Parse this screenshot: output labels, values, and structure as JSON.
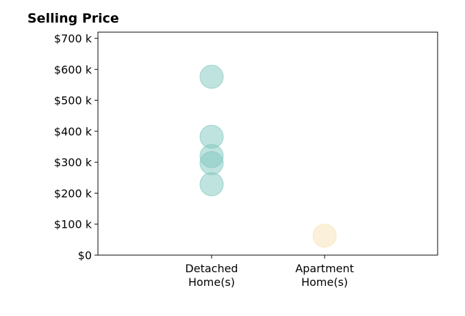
{
  "chart_data": {
    "type": "scatter",
    "title": "Selling Price",
    "xlabel": "",
    "ylabel": "",
    "categories": [
      "Detached\nHome(s)",
      "Apartment\nHome(s)"
    ],
    "ylim": [
      0,
      720000
    ],
    "yticks": [
      {
        "value": 0,
        "label": "$0"
      },
      {
        "value": 100000,
        "label": "$100 k"
      },
      {
        "value": 200000,
        "label": "$200 k"
      },
      {
        "value": 300000,
        "label": "$300 k"
      },
      {
        "value": 400000,
        "label": "$400 k"
      },
      {
        "value": 500000,
        "label": "$500 k"
      },
      {
        "value": 600000,
        "label": "$600 k"
      },
      {
        "value": 700000,
        "label": "$700 k"
      }
    ],
    "grid": false,
    "series": [
      {
        "category_index": 0,
        "color": "#7fc8be",
        "values": [
          576000,
          382000,
          320000,
          297000,
          229000
        ]
      },
      {
        "category_index": 1,
        "color": "#f7e3b5",
        "values": [
          63000
        ]
      }
    ]
  }
}
